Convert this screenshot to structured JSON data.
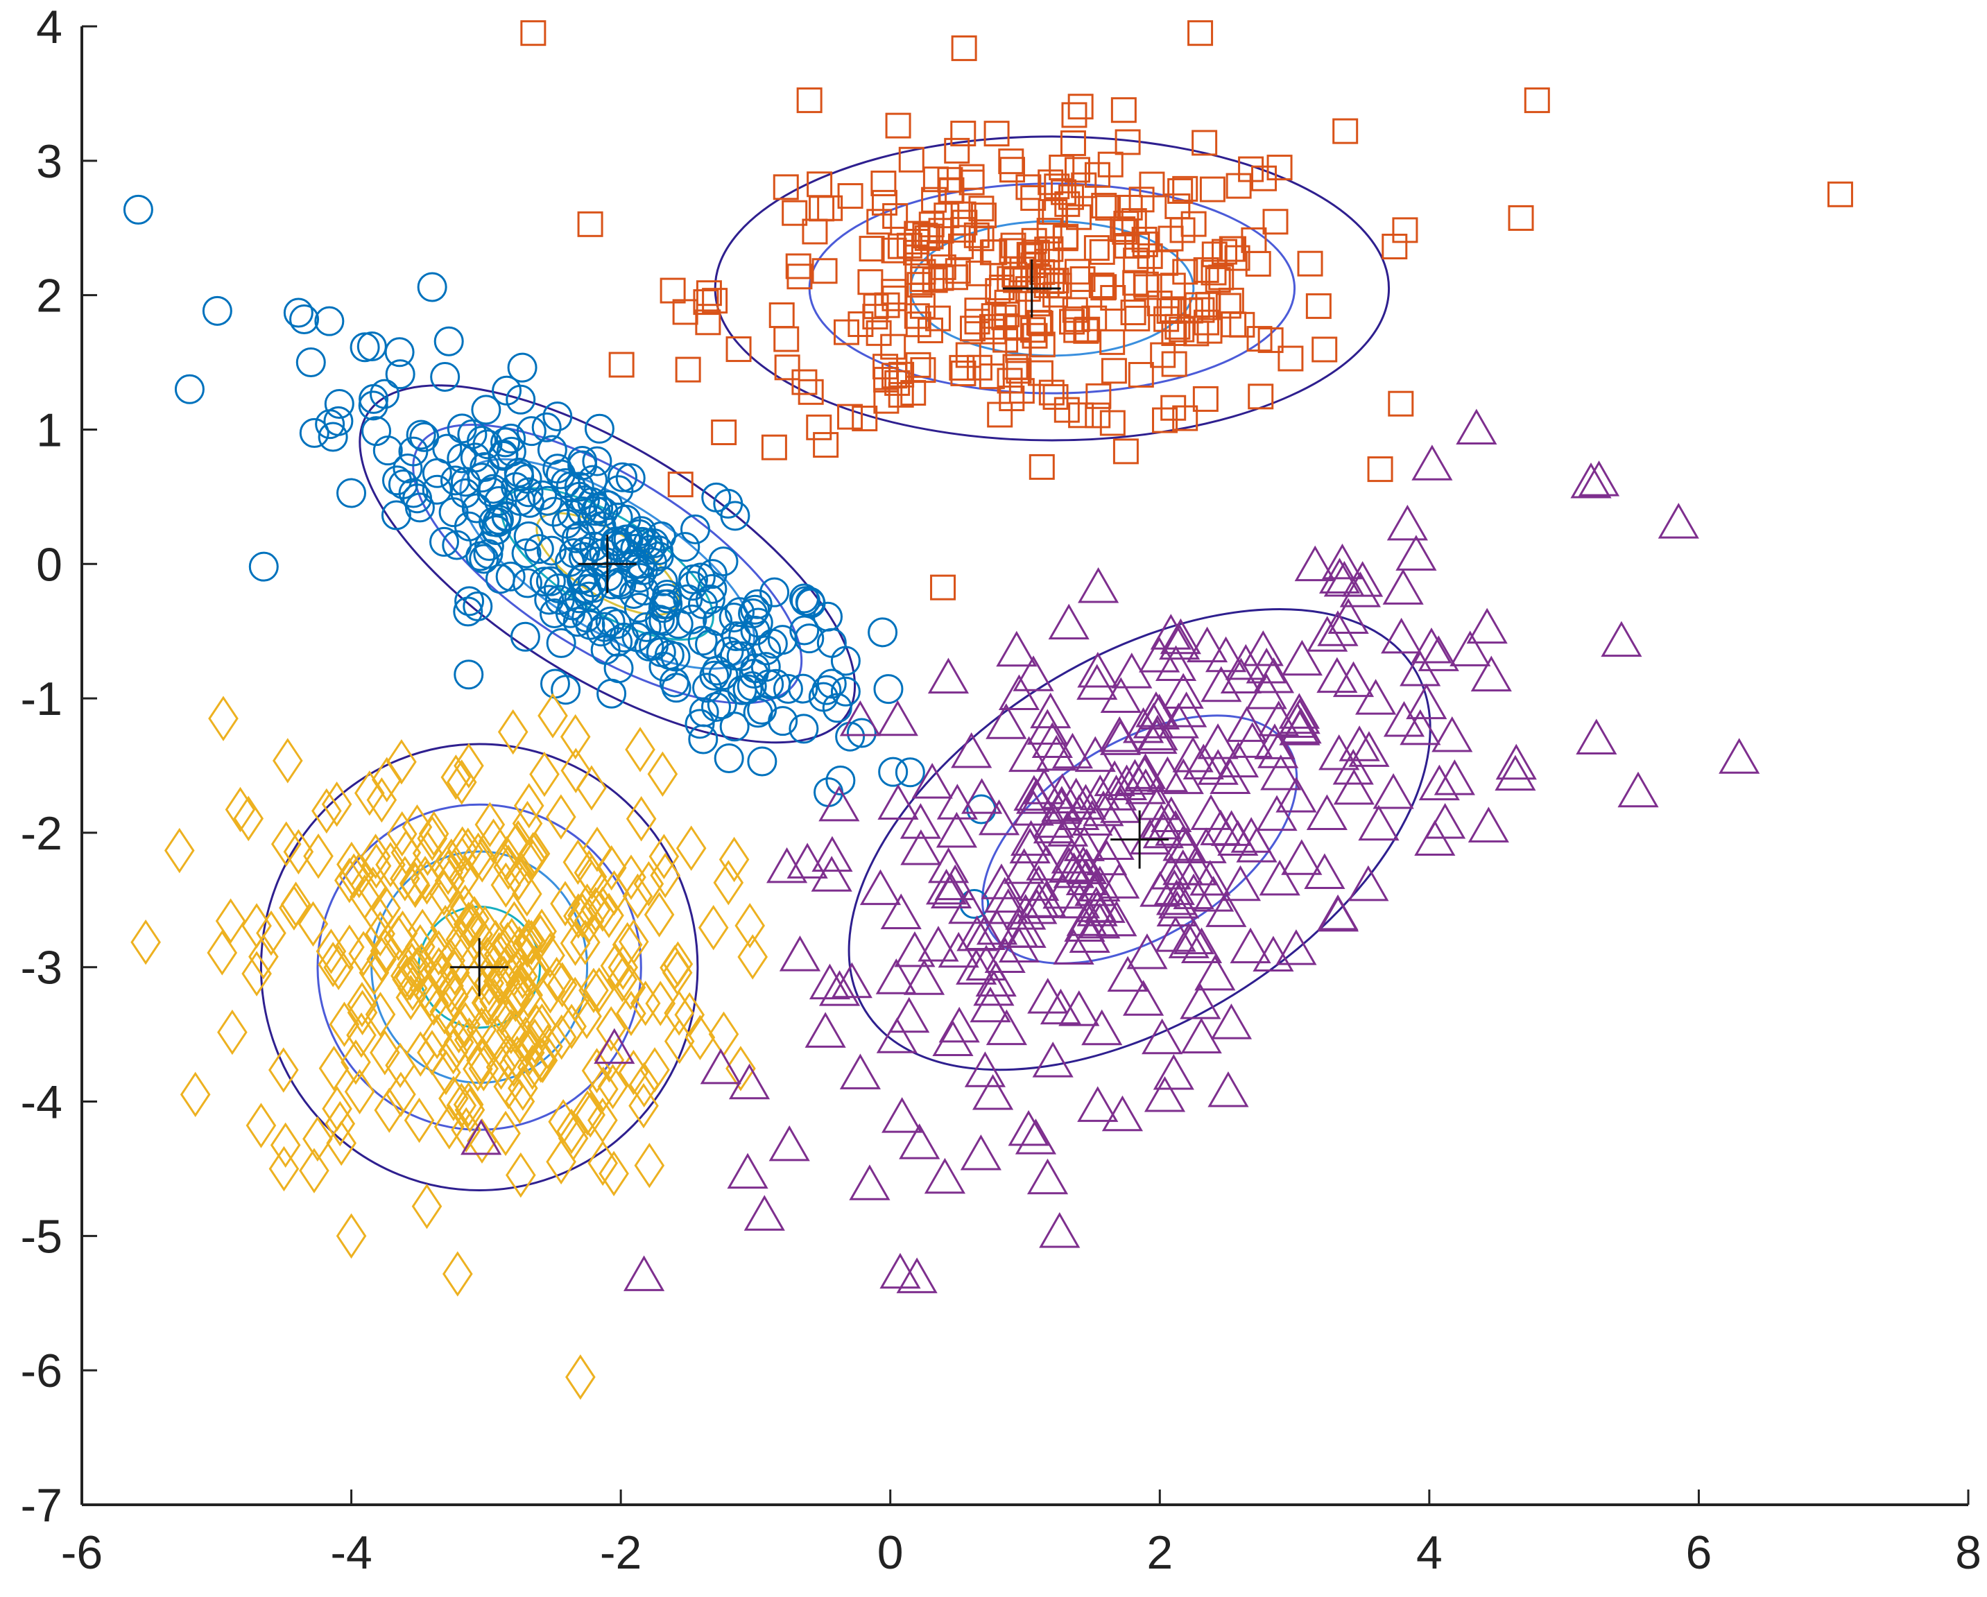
{
  "chart_data": {
    "type": "scatter",
    "title": "",
    "xlabel": "",
    "ylabel": "",
    "xlim": [
      -6,
      8
    ],
    "ylim": [
      -7,
      4
    ],
    "xticks": [
      "-6",
      "-4",
      "-2",
      "0",
      "2",
      "4",
      "6",
      "8"
    ],
    "yticks": [
      "4",
      "3",
      "2",
      "1",
      "0",
      "-1",
      "-2",
      "-3",
      "-4",
      "-5",
      "-6",
      "-7"
    ],
    "grid": false,
    "legend": "none",
    "series": [
      {
        "marker": "circle",
        "color": "#0072BD",
        "n": 300,
        "mean": [
          -2.1,
          0.0
        ],
        "sd": [
          1.0,
          0.75
        ],
        "corr": -0.82,
        "outliers": [
          [
            -5.2,
            1.3
          ],
          [
            -4.65,
            -0.02
          ],
          [
            -3.4,
            2.06
          ],
          [
            -4.35,
            1.82
          ],
          [
            -4.3,
            1.5
          ]
        ]
      },
      {
        "marker": "square",
        "color": "#D95319",
        "n": 300,
        "mean": [
          1.05,
          2.05
        ],
        "sd": [
          1.15,
          0.55
        ],
        "corr": 0.05,
        "outliers": [
          [
            7.05,
            2.75
          ],
          [
            -2.65,
            3.95
          ],
          [
            2.3,
            3.95
          ],
          [
            -0.6,
            3.45
          ],
          [
            4.8,
            3.45
          ]
        ]
      },
      {
        "marker": "diamond",
        "color": "#EDB120",
        "n": 300,
        "mean": [
          -3.05,
          -3.0
        ],
        "sd": [
          0.85,
          0.8
        ],
        "corr": 0.0,
        "outliers": [
          [
            -2.3,
            -6.05
          ],
          [
            -4.95,
            -1.15
          ],
          [
            -2.8,
            -1.25
          ],
          [
            -4.5,
            -4.5
          ],
          [
            -4.0,
            -5.0
          ]
        ]
      },
      {
        "marker": "triangle",
        "color": "#7E2F8E",
        "n": 300,
        "mean": [
          1.85,
          -2.05
        ],
        "sd": [
          1.3,
          1.05
        ],
        "corr": 0.6,
        "outliers": [
          [
            6.3,
            -1.45
          ],
          [
            5.55,
            -1.7
          ],
          [
            4.35,
            1.0
          ],
          [
            5.2,
            0.6
          ],
          [
            5.85,
            0.3
          ]
        ]
      }
    ],
    "centers": [
      [
        -2.1,
        0.0
      ],
      [
        1.05,
        2.05
      ],
      [
        -3.05,
        -3.0
      ],
      [
        1.85,
        -2.05
      ]
    ],
    "contours": [
      {
        "center": [
          -2.1,
          0.0
        ],
        "angle_deg": -32,
        "radii": [
          [
            2.1,
            0.85
          ],
          [
            1.65,
            0.65
          ],
          [
            1.25,
            0.48
          ],
          [
            0.9,
            0.35
          ],
          [
            0.6,
            0.24
          ]
        ]
      },
      {
        "center": [
          1.2,
          2.05
        ],
        "angle_deg": 0,
        "radii": [
          [
            2.5,
            1.13
          ],
          [
            1.8,
            0.78
          ],
          [
            1.05,
            0.5
          ]
        ]
      },
      {
        "center": [
          -3.05,
          -3.0
        ],
        "angle_deg": 0,
        "radii": [
          [
            1.62,
            1.66
          ],
          [
            1.2,
            1.21
          ],
          [
            0.8,
            0.86
          ],
          [
            0.45,
            0.45
          ]
        ]
      },
      {
        "center": [
          1.85,
          -2.05
        ],
        "angle_deg": 32,
        "radii": [
          [
            2.4,
            1.35
          ],
          [
            1.3,
            0.72
          ]
        ]
      }
    ],
    "contour_colors": [
      "#2E1F8F",
      "#4B5BD8",
      "#3A8FDE",
      "#17AFC0",
      "#D9C240"
    ]
  }
}
